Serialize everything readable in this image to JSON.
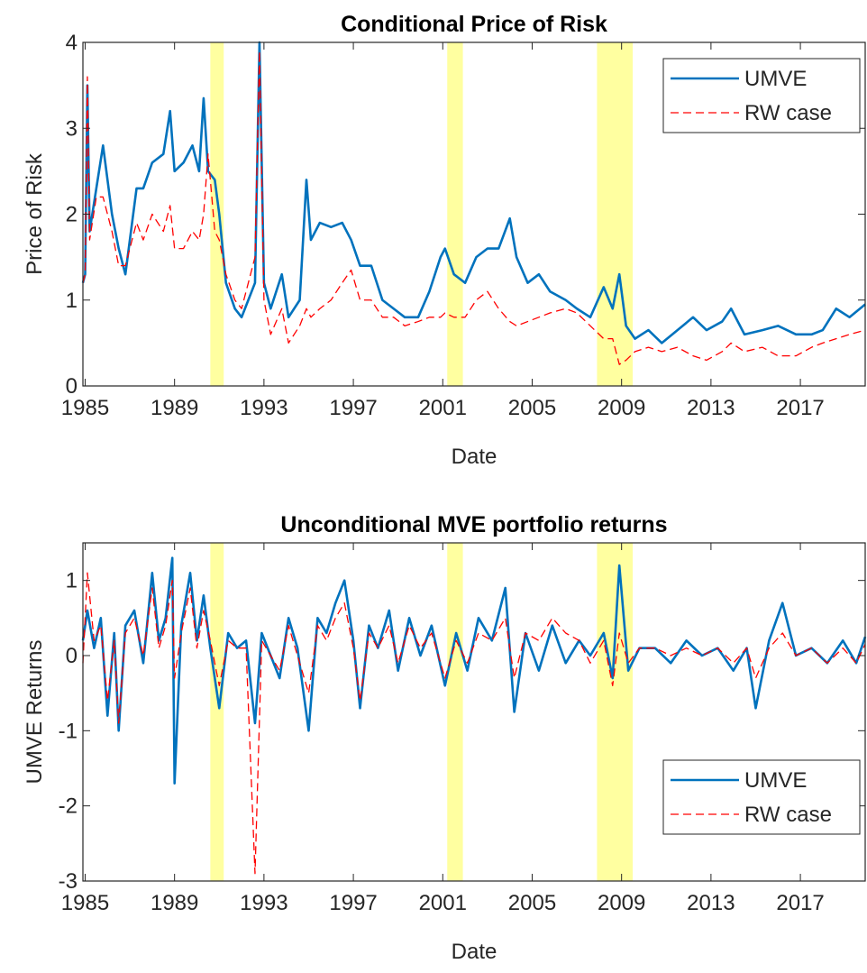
{
  "chart_data": [
    {
      "type": "line",
      "title": "Conditional Price of Risk",
      "xlabel": "Date",
      "ylabel": "Price of Risk",
      "x": [
        1984.9,
        1985.0,
        1985.1,
        1985.2,
        1985.5,
        1985.8,
        1986.2,
        1986.5,
        1986.8,
        1987.3,
        1987.6,
        1988.0,
        1988.5,
        1988.8,
        1989.0,
        1989.4,
        1989.8,
        1990.1,
        1990.3,
        1990.5,
        1990.8,
        1991.0,
        1991.3,
        1991.7,
        1992.0,
        1992.3,
        1992.6,
        1992.8,
        1993.0,
        1993.3,
        1993.8,
        1994.1,
        1994.6,
        1994.9,
        1995.1,
        1995.5,
        1996.0,
        1996.5,
        1996.9,
        1997.3,
        1997.8,
        1998.3,
        1998.8,
        1999.3,
        1999.9,
        2000.4,
        2000.9,
        2001.1,
        2001.5,
        2002.0,
        2002.5,
        2003.0,
        2003.5,
        2004.0,
        2004.3,
        2004.8,
        2005.3,
        2005.8,
        2006.5,
        2007.0,
        2007.6,
        2008.2,
        2008.6,
        2008.9,
        2009.2,
        2009.6,
        2010.2,
        2010.8,
        2011.5,
        2012.2,
        2012.8,
        2013.5,
        2013.9,
        2014.5,
        2015.3,
        2016.0,
        2016.8,
        2017.5,
        2018.0,
        2018.6,
        2019.2,
        2019.9
      ],
      "series": [
        {
          "name": "UMVE",
          "color": "#0072bd",
          "dash": "solid",
          "values": [
            1.2,
            1.3,
            3.5,
            1.8,
            2.3,
            2.8,
            2.0,
            1.6,
            1.3,
            2.3,
            2.3,
            2.6,
            2.7,
            3.2,
            2.5,
            2.6,
            2.8,
            2.5,
            3.35,
            2.5,
            2.4,
            2.0,
            1.2,
            0.9,
            0.8,
            1.0,
            1.2,
            4.0,
            1.2,
            0.9,
            1.3,
            0.8,
            1.0,
            2.4,
            1.7,
            1.9,
            1.85,
            1.9,
            1.7,
            1.4,
            1.4,
            1.0,
            0.9,
            0.8,
            0.8,
            1.1,
            1.5,
            1.6,
            1.3,
            1.2,
            1.5,
            1.6,
            1.6,
            1.95,
            1.5,
            1.2,
            1.3,
            1.1,
            1.0,
            0.9,
            0.8,
            1.15,
            0.9,
            1.3,
            0.7,
            0.55,
            0.65,
            0.5,
            0.65,
            0.8,
            0.65,
            0.75,
            0.9,
            0.6,
            0.65,
            0.7,
            0.6,
            0.6,
            0.65,
            0.9,
            0.8,
            0.95
          ]
        },
        {
          "name": "RW case",
          "color": "#ff0000",
          "dash": "dashed",
          "values": [
            1.2,
            1.3,
            3.6,
            1.7,
            2.2,
            2.2,
            1.8,
            1.4,
            1.4,
            1.9,
            1.7,
            2.0,
            1.8,
            2.1,
            1.6,
            1.6,
            1.8,
            1.7,
            2.0,
            2.7,
            1.8,
            1.7,
            1.3,
            1.0,
            0.9,
            1.2,
            1.5,
            3.9,
            1.0,
            0.6,
            0.9,
            0.5,
            0.7,
            0.9,
            0.8,
            0.9,
            1.0,
            1.2,
            1.35,
            1.0,
            1.0,
            0.8,
            0.8,
            0.7,
            0.75,
            0.8,
            0.8,
            0.85,
            0.8,
            0.8,
            1.0,
            1.1,
            0.9,
            0.75,
            0.7,
            0.75,
            0.8,
            0.85,
            0.9,
            0.85,
            0.7,
            0.55,
            0.55,
            0.25,
            0.3,
            0.4,
            0.45,
            0.4,
            0.45,
            0.35,
            0.3,
            0.4,
            0.5,
            0.4,
            0.45,
            0.35,
            0.35,
            0.45,
            0.5,
            0.55,
            0.6,
            0.65
          ]
        }
      ],
      "recessions": [
        [
          1990.6,
          1991.2
        ],
        [
          2001.2,
          2001.9
        ],
        [
          2007.9,
          2009.5
        ]
      ],
      "recession_color": "#ffff80",
      "xlim": [
        1984.9,
        2019.9
      ],
      "xticks": [
        1985,
        1989,
        1993,
        1997,
        2001,
        2005,
        2009,
        2013,
        2017
      ],
      "ylim": [
        0,
        4
      ],
      "yticks": [
        0,
        1,
        2,
        3,
        4
      ],
      "legend": "northeast"
    },
    {
      "type": "line",
      "title": "Unconditional MVE portfolio returns",
      "xlabel": "Date",
      "ylabel": "UMVE Returns",
      "x": [
        1984.9,
        1985.1,
        1985.4,
        1985.7,
        1986.0,
        1986.3,
        1986.5,
        1986.8,
        1987.2,
        1987.6,
        1988.0,
        1988.3,
        1988.6,
        1988.9,
        1989.0,
        1989.3,
        1989.7,
        1990.0,
        1990.3,
        1990.6,
        1991.0,
        1991.4,
        1991.8,
        1992.2,
        1992.6,
        1992.9,
        1993.3,
        1993.7,
        1994.1,
        1994.5,
        1995.0,
        1995.4,
        1995.8,
        1996.2,
        1996.6,
        1997.0,
        1997.3,
        1997.7,
        1998.1,
        1998.6,
        1999.0,
        1999.5,
        2000.0,
        2000.5,
        2001.1,
        2001.6,
        2002.1,
        2002.6,
        2003.2,
        2003.8,
        2004.2,
        2004.7,
        2005.3,
        2005.9,
        2006.5,
        2007.1,
        2007.6,
        2008.2,
        2008.6,
        2008.9,
        2009.3,
        2009.8,
        2010.5,
        2011.2,
        2011.9,
        2012.6,
        2013.3,
        2014.0,
        2014.6,
        2015.0,
        2015.6,
        2016.2,
        2016.8,
        2017.5,
        2018.2,
        2018.9,
        2019.5,
        2019.9
      ],
      "series": [
        {
          "name": "UMVE",
          "color": "#0072bd",
          "dash": "solid",
          "values": [
            0.2,
            0.6,
            0.1,
            0.5,
            -0.8,
            0.3,
            -1.0,
            0.4,
            0.6,
            -0.1,
            1.1,
            0.2,
            0.5,
            1.3,
            -1.7,
            0.4,
            1.1,
            0.2,
            0.8,
            0.1,
            -0.7,
            0.3,
            0.1,
            0.2,
            -0.9,
            0.3,
            0.0,
            -0.3,
            0.5,
            0.1,
            -1.0,
            0.5,
            0.3,
            0.7,
            1.0,
            0.2,
            -0.7,
            0.4,
            0.1,
            0.6,
            -0.2,
            0.5,
            0.0,
            0.4,
            -0.4,
            0.3,
            -0.2,
            0.5,
            0.2,
            0.9,
            -0.75,
            0.3,
            -0.2,
            0.4,
            -0.1,
            0.2,
            0.0,
            0.3,
            -0.3,
            1.2,
            -0.2,
            0.1,
            0.1,
            -0.1,
            0.2,
            0.0,
            0.1,
            -0.2,
            0.1,
            -0.7,
            0.2,
            0.7,
            0.0,
            0.1,
            -0.1,
            0.2,
            -0.1,
            0.25
          ]
        },
        {
          "name": "RW case",
          "color": "#ff0000",
          "dash": "dashed",
          "values": [
            -0.1,
            1.1,
            0.2,
            0.4,
            -0.6,
            0.2,
            -0.9,
            0.3,
            0.5,
            0.0,
            0.9,
            0.1,
            0.4,
            1.0,
            -0.3,
            0.3,
            0.9,
            0.1,
            0.6,
            0.2,
            -0.4,
            0.2,
            0.1,
            0.1,
            -2.9,
            0.2,
            0.0,
            -0.2,
            0.4,
            0.0,
            -0.5,
            0.4,
            0.2,
            0.5,
            0.7,
            0.1,
            -0.6,
            0.3,
            0.1,
            0.4,
            -0.1,
            0.4,
            0.1,
            0.3,
            -0.3,
            0.2,
            -0.1,
            0.3,
            0.2,
            0.5,
            -0.3,
            0.3,
            0.2,
            0.5,
            0.3,
            0.2,
            -0.1,
            0.2,
            -0.4,
            0.3,
            -0.1,
            0.1,
            0.1,
            0.0,
            0.1,
            0.0,
            0.1,
            -0.1,
            0.1,
            -0.3,
            0.1,
            0.3,
            0.0,
            0.1,
            -0.1,
            0.1,
            -0.1,
            0.15
          ]
        }
      ],
      "recessions": [
        [
          1990.6,
          1991.2
        ],
        [
          2001.2,
          2001.9
        ],
        [
          2007.9,
          2009.5
        ]
      ],
      "recession_color": "#ffff80",
      "xlim": [
        1984.9,
        2019.9
      ],
      "xticks": [
        1985,
        1989,
        1993,
        1997,
        2001,
        2005,
        2009,
        2013,
        2017
      ],
      "ylim": [
        -3,
        1.5
      ],
      "yticks": [
        -3,
        -2,
        -1,
        0,
        1
      ],
      "legend": "southeast"
    }
  ]
}
